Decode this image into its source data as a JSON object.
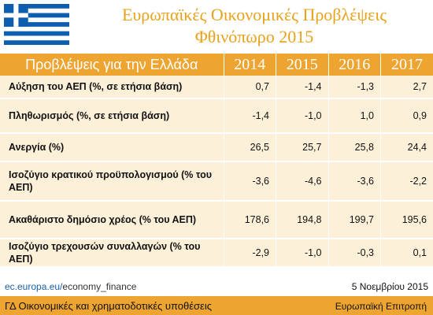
{
  "header": {
    "title": "Ευρωπαϊκές Οικονομικές Προβλέψεις",
    "subtitle": "Φθινόπωρο 2015",
    "flag_icon": "greek-flag-icon",
    "flag_colors": {
      "blue": "#0d5eaf",
      "white": "#ffffff"
    }
  },
  "table": {
    "header_label": "Προβλέψεις για την Ελλάδα",
    "years": [
      "2014",
      "2015",
      "2016",
      "2017"
    ],
    "rows": [
      {
        "label": "Αύξηση του ΑΕΠ (%, σε ετήσια βάση)",
        "values": [
          "0,7",
          "-1,4",
          "-1,3",
          "2,7"
        ]
      },
      {
        "label": "Πληθωρισμός (%, σε ετήσια βάση)",
        "values": [
          "-1,4",
          "-1,0",
          "1,0",
          "0,9"
        ]
      },
      {
        "label": "Ανεργία (%)",
        "values": [
          "26,5",
          "25,7",
          "25,8",
          "24,4"
        ]
      },
      {
        "label": "Ισοζύγιο κρατικού προϋπολογισμού (% του ΑΕΠ)",
        "values": [
          "-3,6",
          "-4,6",
          "-3,6",
          "-2,2"
        ]
      },
      {
        "label": "Ακαθάριστο δημόσιο χρέος (% του ΑΕΠ)",
        "values": [
          "178,6",
          "194,8",
          "199,7",
          "195,6"
        ]
      },
      {
        "label": "Ισοζύγιο τρεχουσών συναλλαγών (% του ΑΕΠ)",
        "values": [
          "-2,9",
          "-1,0",
          "-0,3",
          "0,1"
        ]
      }
    ]
  },
  "footer": {
    "source_domain": "ec.europa.eu/",
    "source_path": "economy_finance",
    "date": "5 Νοεμβρίου 2015",
    "dg": "ΓΔ Οικονομικές και χρηματοδοτικές υποθέσεις",
    "commission": "Ευρωπαϊκή Επιτροπή"
  },
  "colors": {
    "accent": "#eea431",
    "title": "#e8a21b",
    "row_bg": "#fdf0d9",
    "link": "#1a5fa8"
  }
}
